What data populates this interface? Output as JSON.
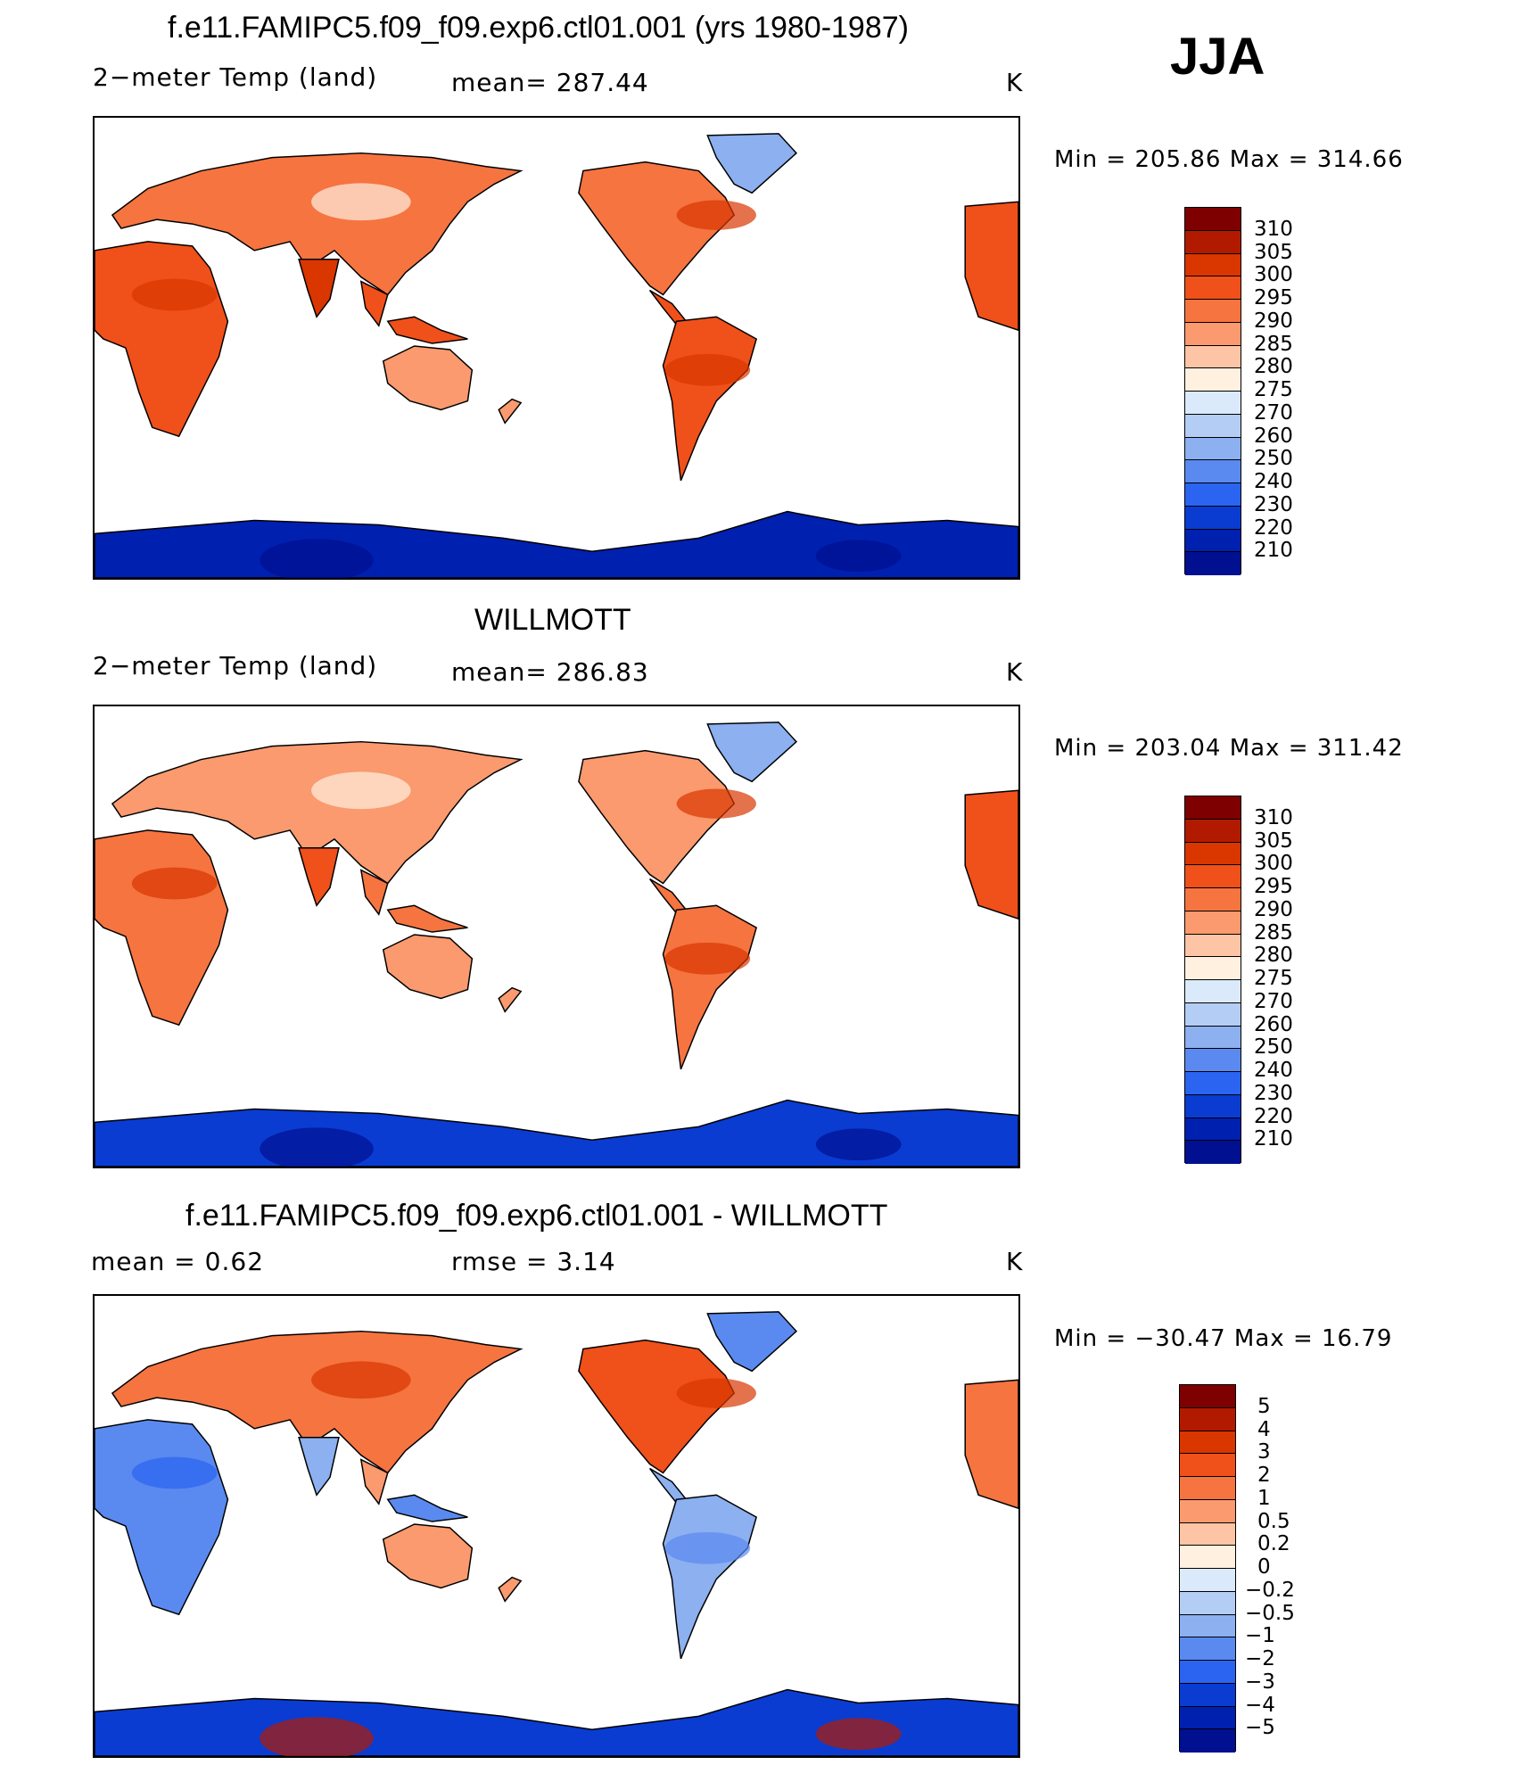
{
  "season": "JJA",
  "panels": [
    {
      "title": "f.e11.FAMIPC5.f09_f09.exp6.ctl01.001 (yrs 1980-1987)",
      "left_text": "2−meter Temp (land)",
      "center_text": "mean= 287.44",
      "units": "K",
      "minmax": "Min = 205.86 Max = 314.66",
      "levels": [
        "310",
        "305",
        "300",
        "295",
        "290",
        "285",
        "280",
        "275",
        "270",
        "260",
        "250",
        "240",
        "230",
        "220",
        "210"
      ],
      "palette": "abs",
      "map_variant": "model"
    },
    {
      "title": "WILLMOTT",
      "left_text": "2−meter Temp (land)",
      "center_text": "mean= 286.83",
      "units": "K",
      "minmax": "Min = 203.04 Max = 311.42",
      "levels": [
        "310",
        "305",
        "300",
        "295",
        "290",
        "285",
        "280",
        "275",
        "270",
        "260",
        "250",
        "240",
        "230",
        "220",
        "210"
      ],
      "palette": "abs",
      "map_variant": "obs"
    },
    {
      "title": "f.e11.FAMIPC5.f09_f09.exp6.ctl01.001 - WILLMOTT",
      "left_text": "mean =    0.62",
      "center_text": "rmse =    3.14",
      "units": "K",
      "minmax": "Min = −30.47 Max =   16.79",
      "levels": [
        "5",
        "4",
        "3",
        "2",
        "1",
        "0.5",
        "0.2",
        "0",
        "−0.2",
        "−0.5",
        "−1",
        "−2",
        "−3",
        "−4",
        "−5"
      ],
      "palette": "diff",
      "map_variant": "diff"
    }
  ],
  "colors": {
    "abs": [
      "#7f0000",
      "#b21a00",
      "#d93600",
      "#f0501a",
      "#f57440",
      "#fa9a6e",
      "#fdc5a5",
      "#fff0e0",
      "#dbeafa",
      "#b4cdf5",
      "#8cb0f0",
      "#5a8af0",
      "#2a64f0",
      "#0a3cd2",
      "#0020b0",
      "#001090"
    ],
    "diff": [
      "#7f0000",
      "#b21a00",
      "#d93600",
      "#f0501a",
      "#f57440",
      "#fa9a6e",
      "#fdc5a5",
      "#fff0e0",
      "#dbeafa",
      "#b4cdf5",
      "#8cb0f0",
      "#5a8af0",
      "#2a64f0",
      "#0a3cd2",
      "#0020b0",
      "#001090"
    ]
  }
}
